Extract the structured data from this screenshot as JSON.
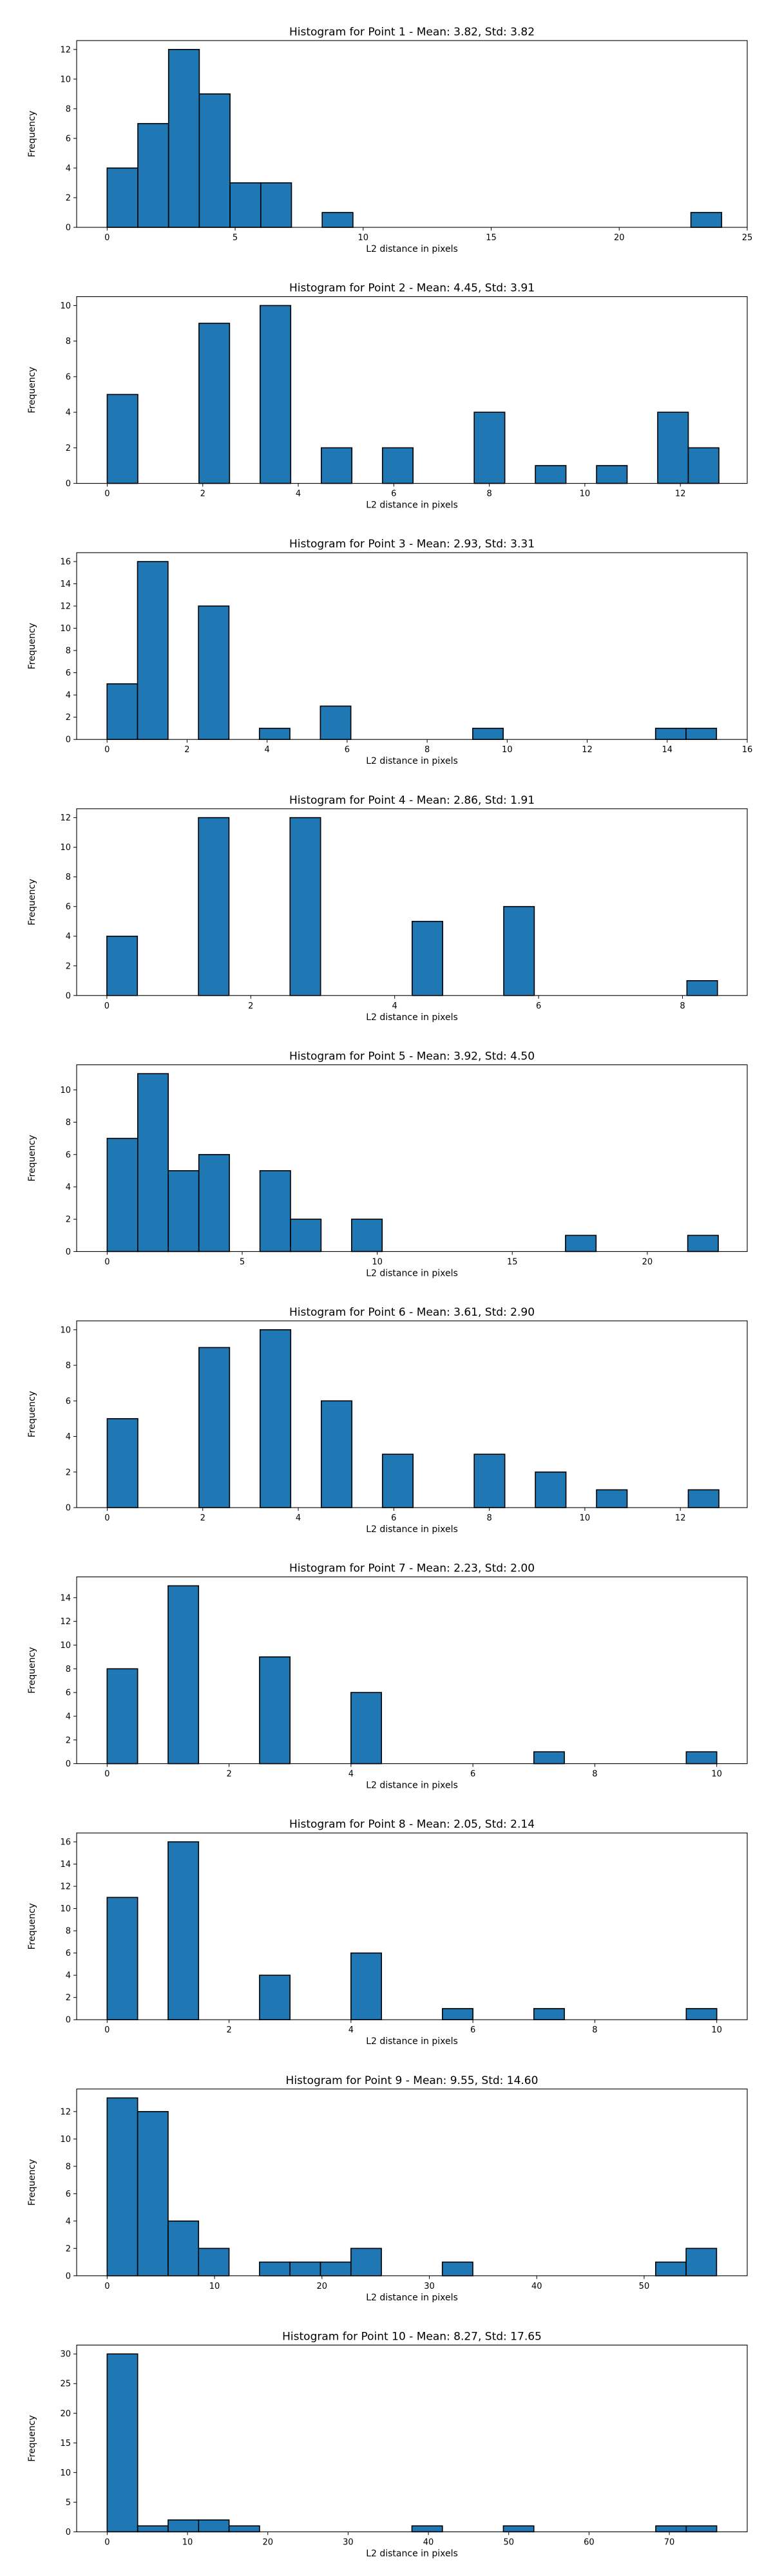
{
  "chart_data": [
    {
      "type": "bar",
      "title": "Histogram for Point 1 - Mean: 3.82, Std: 3.82",
      "xlabel": "L2 distance in pixels",
      "ylabel": "Frequency",
      "xlim": [
        -1.19,
        25.0
      ],
      "ylim": [
        0,
        12.6
      ],
      "x_ticks": [
        0,
        5,
        10,
        15,
        20,
        25
      ],
      "y_ticks": [
        0,
        2,
        4,
        6,
        8,
        10,
        12
      ],
      "bins": [
        0.0,
        1.2,
        2.4,
        3.6,
        4.8,
        6.0,
        7.2,
        8.4,
        9.6,
        10.8,
        12.0,
        13.2,
        14.4,
        15.6,
        16.8,
        18.0,
        19.2,
        20.4,
        21.6,
        22.8,
        24.0
      ],
      "counts": [
        4,
        7,
        12,
        9,
        3,
        3,
        0,
        1,
        0,
        0,
        0,
        0,
        0,
        0,
        0,
        0,
        0,
        0,
        0,
        1
      ],
      "bar_color": "#1f77b4",
      "edge_color": "#000000"
    },
    {
      "type": "bar",
      "title": "Histogram for Point 2 - Mean: 4.45, Std: 3.91",
      "xlabel": "L2 distance in pixels",
      "ylabel": "Frequency",
      "xlim": [
        -0.64,
        13.4
      ],
      "ylim": [
        0,
        10.5
      ],
      "x_ticks": [
        0,
        2,
        4,
        6,
        8,
        10,
        12
      ],
      "y_ticks": [
        0,
        2,
        4,
        6,
        8,
        10
      ],
      "bins": [
        0.0,
        0.6403,
        1.2806,
        1.9209,
        2.5612,
        3.2015,
        3.8418,
        4.4821,
        5.1224,
        5.7627,
        6.403,
        7.0433,
        7.6836,
        8.3239,
        8.9642,
        9.6045,
        10.2448,
        10.8851,
        11.5254,
        12.1657,
        12.806
      ],
      "counts": [
        5,
        0,
        0,
        9,
        0,
        10,
        0,
        2,
        0,
        2,
        0,
        0,
        4,
        0,
        1,
        0,
        1,
        0,
        4,
        2
      ],
      "bar_color": "#1f77b4",
      "edge_color": "#000000"
    },
    {
      "type": "bar",
      "title": "Histogram for Point 3 - Mean: 2.93, Std: 3.31",
      "xlabel": "L2 distance in pixels",
      "ylabel": "Frequency",
      "xlim": [
        -0.76,
        16.0
      ],
      "ylim": [
        0,
        16.8
      ],
      "x_ticks": [
        0,
        2,
        4,
        6,
        8,
        10,
        12,
        14,
        16
      ],
      "y_ticks": [
        0,
        2,
        4,
        6,
        8,
        10,
        12,
        14,
        16
      ],
      "bins": [
        0.0,
        0.7616,
        1.5232,
        2.2848,
        3.0464,
        3.808,
        4.5696,
        5.3312,
        6.0928,
        6.8544,
        7.616,
        8.3776,
        9.1392,
        9.9008,
        10.6624,
        11.424,
        12.1856,
        12.9472,
        13.7088,
        14.4704,
        15.232
      ],
      "counts": [
        5,
        16,
        0,
        12,
        0,
        1,
        0,
        3,
        0,
        0,
        0,
        0,
        1,
        0,
        0,
        0,
        0,
        0,
        1,
        1
      ],
      "bar_color": "#1f77b4",
      "edge_color": "#000000"
    },
    {
      "type": "bar",
      "title": "Histogram for Point 4 - Mean: 2.86, Std: 1.91",
      "xlabel": "L2 distance in pixels",
      "ylabel": "Frequency",
      "xlim": [
        -0.42,
        8.9
      ],
      "ylim": [
        0,
        12.6
      ],
      "x_ticks": [
        0,
        2,
        4,
        6,
        8
      ],
      "y_ticks": [
        0,
        2,
        4,
        6,
        8,
        10,
        12
      ],
      "bins": [
        0.0,
        0.4243,
        0.8486,
        1.2729,
        1.6972,
        2.1215,
        2.5458,
        2.9701,
        3.3944,
        3.8187,
        4.243,
        4.6673,
        5.0916,
        5.5159,
        5.9402,
        6.3645,
        6.7888,
        7.2131,
        7.6374,
        8.0617,
        8.486
      ],
      "counts": [
        4,
        0,
        0,
        12,
        0,
        0,
        12,
        0,
        0,
        0,
        5,
        0,
        0,
        6,
        0,
        0,
        0,
        0,
        0,
        1
      ],
      "bar_color": "#1f77b4",
      "edge_color": "#000000"
    },
    {
      "type": "bar",
      "title": "Histogram for Point 5 - Mean: 3.92, Std: 4.50",
      "xlabel": "L2 distance in pixels",
      "ylabel": "Frequency",
      "xlim": [
        -1.13,
        23.7
      ],
      "ylim": [
        0,
        11.55
      ],
      "x_ticks": [
        0,
        5,
        10,
        15,
        20
      ],
      "y_ticks": [
        0,
        2,
        4,
        6,
        8,
        10
      ],
      "bins": [
        0.0,
        1.1314,
        2.2628,
        3.3942,
        4.5256,
        5.657,
        6.7884,
        7.9198,
        9.0512,
        10.1826,
        11.314,
        12.4454,
        13.5768,
        14.7082,
        15.8396,
        16.971,
        18.1024,
        19.2338,
        20.3652,
        21.4966,
        22.628
      ],
      "counts": [
        7,
        11,
        5,
        6,
        0,
        5,
        2,
        0,
        2,
        0,
        0,
        0,
        0,
        0,
        0,
        1,
        0,
        0,
        0,
        1
      ],
      "bar_color": "#1f77b4",
      "edge_color": "#000000"
    },
    {
      "type": "bar",
      "title": "Histogram for Point 6 - Mean: 3.61, Std: 2.90",
      "xlabel": "L2 distance in pixels",
      "ylabel": "Frequency",
      "xlim": [
        -0.64,
        13.4
      ],
      "ylim": [
        0,
        10.5
      ],
      "x_ticks": [
        0,
        2,
        4,
        6,
        8,
        10,
        12
      ],
      "y_ticks": [
        0,
        2,
        4,
        6,
        8,
        10
      ],
      "bins": [
        0.0,
        0.6403,
        1.2806,
        1.9209,
        2.5612,
        3.2015,
        3.8418,
        4.4821,
        5.1224,
        5.7627,
        6.403,
        7.0433,
        7.6836,
        8.3239,
        8.9642,
        9.6045,
        10.2448,
        10.8851,
        11.5254,
        12.1657,
        12.806
      ],
      "counts": [
        5,
        0,
        0,
        9,
        0,
        10,
        0,
        6,
        0,
        3,
        0,
        0,
        3,
        0,
        2,
        0,
        1,
        0,
        0,
        1
      ],
      "bar_color": "#1f77b4",
      "edge_color": "#000000"
    },
    {
      "type": "bar",
      "title": "Histogram for Point 7 - Mean: 2.23, Std: 2.00",
      "xlabel": "L2 distance in pixels",
      "ylabel": "Frequency",
      "xlim": [
        -0.5,
        10.5
      ],
      "ylim": [
        0,
        15.75
      ],
      "x_ticks": [
        0,
        2,
        4,
        6,
        8,
        10
      ],
      "y_ticks": [
        0,
        2,
        4,
        6,
        8,
        10,
        12,
        14
      ],
      "bins": [
        0.0,
        0.5,
        1.0,
        1.5,
        2.0,
        2.5,
        3.0,
        3.5,
        4.0,
        4.5,
        5.0,
        5.5,
        6.0,
        6.5,
        7.0,
        7.5,
        8.0,
        8.5,
        9.0,
        9.5,
        10.0
      ],
      "counts": [
        8,
        0,
        15,
        0,
        0,
        9,
        0,
        0,
        6,
        0,
        0,
        0,
        0,
        0,
        1,
        0,
        0,
        0,
        0,
        1
      ],
      "bar_color": "#1f77b4",
      "edge_color": "#000000"
    },
    {
      "type": "bar",
      "title": "Histogram for Point 8 - Mean: 2.05, Std: 2.14",
      "xlabel": "L2 distance in pixels",
      "ylabel": "Frequency",
      "xlim": [
        -0.5,
        10.5
      ],
      "ylim": [
        0,
        16.8
      ],
      "x_ticks": [
        0,
        2,
        4,
        6,
        8,
        10
      ],
      "y_ticks": [
        0,
        2,
        4,
        6,
        8,
        10,
        12,
        14,
        16
      ],
      "bins": [
        0.0,
        0.5,
        1.0,
        1.5,
        2.0,
        2.5,
        3.0,
        3.5,
        4.0,
        4.5,
        5.0,
        5.5,
        6.0,
        6.5,
        7.0,
        7.5,
        8.0,
        8.5,
        9.0,
        9.5,
        10.0
      ],
      "counts": [
        11,
        0,
        16,
        0,
        0,
        4,
        0,
        0,
        6,
        0,
        0,
        1,
        0,
        0,
        1,
        0,
        0,
        0,
        0,
        1
      ],
      "bar_color": "#1f77b4",
      "edge_color": "#000000"
    },
    {
      "type": "bar",
      "title": "Histogram for Point 9 - Mean: 9.55, Std: 14.60",
      "xlabel": "L2 distance in pixels",
      "ylabel": "Frequency",
      "xlim": [
        -2.84,
        59.6
      ],
      "ylim": [
        0,
        13.65
      ],
      "x_ticks": [
        0,
        10,
        20,
        30,
        40,
        50
      ],
      "y_ticks": [
        0,
        2,
        4,
        6,
        8,
        10,
        12
      ],
      "bins": [
        0.0,
        2.8373,
        5.6746,
        8.5119,
        11.3492,
        14.1865,
        17.0238,
        19.8611,
        22.6984,
        25.5357,
        28.373,
        31.2103,
        34.0476,
        36.8849,
        39.7222,
        42.5595,
        45.3968,
        48.2341,
        51.0714,
        53.9087,
        56.746
      ],
      "counts": [
        13,
        12,
        4,
        2,
        0,
        1,
        1,
        1,
        2,
        0,
        0,
        1,
        0,
        0,
        0,
        0,
        0,
        0,
        1,
        2
      ],
      "bar_color": "#1f77b4",
      "edge_color": "#000000"
    },
    {
      "type": "bar",
      "title": "Histogram for Point 10 - Mean: 8.27, Std: 17.65",
      "xlabel": "L2 distance in pixels",
      "ylabel": "Frequency",
      "xlim": [
        -3.8,
        79.7
      ],
      "ylim": [
        0,
        31.5
      ],
      "x_ticks": [
        0,
        10,
        20,
        30,
        40,
        50,
        60,
        70
      ],
      "y_ticks": [
        0,
        5,
        10,
        15,
        20,
        25,
        30
      ],
      "bins": [
        0.0,
        3.795,
        7.59,
        11.385,
        15.18,
        18.975,
        22.77,
        26.565,
        30.36,
        34.155,
        37.95,
        41.745,
        45.54,
        49.335,
        53.13,
        56.925,
        60.72,
        64.515,
        68.31,
        72.105,
        75.9
      ],
      "counts": [
        30,
        1,
        2,
        2,
        1,
        0,
        0,
        0,
        0,
        0,
        1,
        0,
        0,
        1,
        0,
        0,
        0,
        0,
        1,
        1
      ],
      "bar_color": "#1f77b4",
      "edge_color": "#000000"
    }
  ]
}
